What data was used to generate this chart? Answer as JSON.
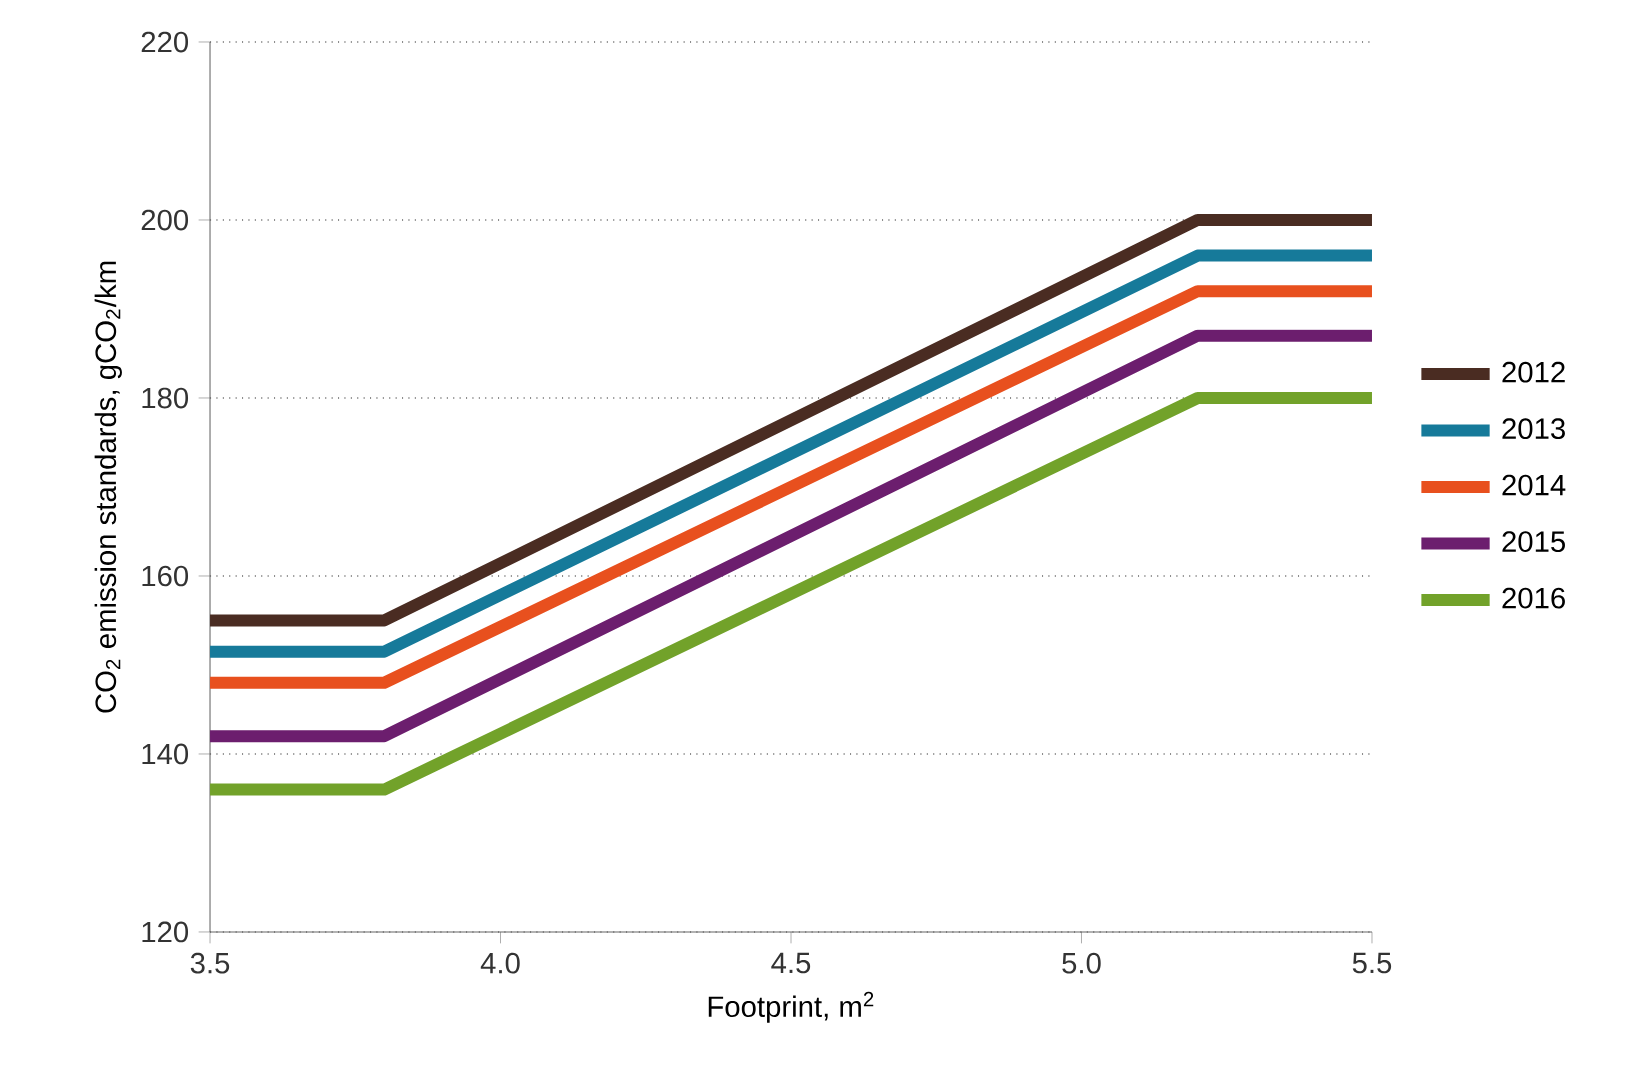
{
  "chart_data": {
    "type": "line",
    "xlabel": "Footprint, m$^{2}$",
    "ylabel": "CO$_{2}$ emission standards, gCO$_{2}$/km",
    "x": [
      3.5,
      3.8,
      5.2,
      5.5
    ],
    "series": [
      {
        "name": "2012",
        "color": "#4a2c22",
        "values": [
          155,
          155,
          200,
          200
        ]
      },
      {
        "name": "2013",
        "color": "#167a9a",
        "values": [
          151.5,
          151.5,
          196,
          196
        ]
      },
      {
        "name": "2014",
        "color": "#e8501e",
        "values": [
          148,
          148,
          192,
          192
        ]
      },
      {
        "name": "2015",
        "color": "#6c1e6e",
        "values": [
          142,
          142,
          187,
          187
        ]
      },
      {
        "name": "2016",
        "color": "#72a22a",
        "values": [
          136,
          136,
          180,
          180
        ]
      }
    ],
    "xlim": [
      3.5,
      5.5
    ],
    "ylim": [
      120,
      220
    ],
    "xticks": [
      3.5,
      {
        "value": 4,
        "label": "4.0"
      },
      4.5,
      {
        "value": 5,
        "label": "5.0"
      },
      5.5
    ],
    "yticks": [
      120,
      140,
      160,
      180,
      200,
      220
    ],
    "grid": "y",
    "legend": "right",
    "marker": "none",
    "line_style": "solid"
  }
}
